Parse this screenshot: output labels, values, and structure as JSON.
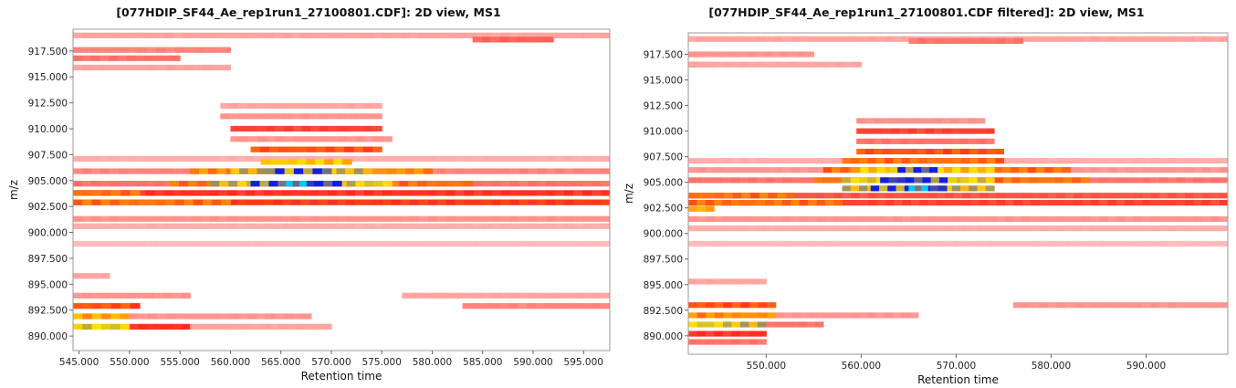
{
  "charts": [
    {
      "title": "[077HDIP_SF44_Ae_rep1run1_27100801.CDF]: 2D view, MS1",
      "xlabel": "Retention time",
      "ylabel": "m/z"
    },
    {
      "title": "[077HDIP_SF44_Ae_rep1run1_27100801.CDF filtered]: 2D view, MS1",
      "xlabel": "Retention time",
      "ylabel": "m/z"
    }
  ],
  "colors": {
    "low": "#ffd6d6",
    "mid": "#ff2a1a",
    "high": "#ffe100",
    "peak": "#1020e0",
    "apex": "#00c8ff"
  },
  "chart_data": [
    {
      "type": "heatmap",
      "title": "[077HDIP_SF44_Ae_rep1run1_27100801.CDF]: 2D view, MS1",
      "xlabel": "Retention time",
      "ylabel": "m/z",
      "xlim": [
        544.4,
        597.6
      ],
      "ylim": [
        888.6,
        919.6
      ],
      "xticks": [
        "545.000",
        "550.000",
        "555.000",
        "560.000",
        "565.000",
        "570.000",
        "575.000",
        "580.000",
        "585.000",
        "590.000",
        "595.000"
      ],
      "yticks": [
        "890.000",
        "892.500",
        "895.000",
        "897.500",
        "900.000",
        "902.500",
        "905.000",
        "907.500",
        "910.000",
        "912.500",
        "915.000",
        "917.500"
      ],
      "bands": [
        {
          "mz": 919.0,
          "x0": 544.4,
          "x1": 597.6,
          "intensity": 0.15
        },
        {
          "mz": 918.6,
          "x0": 584.0,
          "x1": 592.0,
          "intensity": 0.35
        },
        {
          "mz": 917.6,
          "x0": 544.4,
          "x1": 560.0,
          "intensity": 0.25
        },
        {
          "mz": 916.8,
          "x0": 544.4,
          "x1": 555.0,
          "intensity": 0.3
        },
        {
          "mz": 915.9,
          "x0": 544.4,
          "x1": 560.0,
          "intensity": 0.15
        },
        {
          "mz": 912.2,
          "x0": 559.0,
          "x1": 575.0,
          "intensity": 0.15
        },
        {
          "mz": 911.2,
          "x0": 559.0,
          "x1": 575.0,
          "intensity": 0.2
        },
        {
          "mz": 910.0,
          "x0": 560.0,
          "x1": 575.0,
          "intensity": 0.45
        },
        {
          "mz": 909.0,
          "x0": 560.0,
          "x1": 576.0,
          "intensity": 0.2
        },
        {
          "mz": 908.0,
          "x0": 562.0,
          "x1": 575.0,
          "intensity": 0.6
        },
        {
          "mz": 907.1,
          "x0": 544.4,
          "x1": 597.6,
          "intensity": 0.12
        },
        {
          "mz": 906.8,
          "x0": 563.0,
          "x1": 572.0,
          "intensity": 0.8
        },
        {
          "mz": 905.9,
          "x0": 544.4,
          "x1": 597.6,
          "intensity": 0.25
        },
        {
          "mz": 905.9,
          "x0": 556.0,
          "x1": 580.0,
          "intensity": 0.7
        },
        {
          "mz": 905.9,
          "x0": 560.0,
          "x1": 574.0,
          "intensity": 0.85
        },
        {
          "mz": 905.9,
          "x0": 563.5,
          "x1": 570.0,
          "intensity": 0.95
        },
        {
          "mz": 904.7,
          "x0": 544.4,
          "x1": 597.6,
          "intensity": 0.3
        },
        {
          "mz": 904.7,
          "x0": 554.0,
          "x1": 584.0,
          "intensity": 0.65
        },
        {
          "mz": 904.7,
          "x0": 558.0,
          "x1": 576.0,
          "intensity": 0.85
        },
        {
          "mz": 904.7,
          "x0": 562.0,
          "x1": 571.0,
          "intensity": 0.95
        },
        {
          "mz": 904.7,
          "x0": 565.5,
          "x1": 567.5,
          "intensity": 1.0
        },
        {
          "mz": 903.8,
          "x0": 544.4,
          "x1": 597.6,
          "intensity": 0.5
        },
        {
          "mz": 903.8,
          "x0": 544.4,
          "x1": 551.0,
          "intensity": 0.65
        },
        {
          "mz": 902.9,
          "x0": 544.4,
          "x1": 597.6,
          "intensity": 0.55
        },
        {
          "mz": 902.9,
          "x0": 544.4,
          "x1": 560.0,
          "intensity": 0.65
        },
        {
          "mz": 901.3,
          "x0": 544.4,
          "x1": 597.6,
          "intensity": 0.2
        },
        {
          "mz": 900.6,
          "x0": 544.4,
          "x1": 597.6,
          "intensity": 0.12
        },
        {
          "mz": 898.9,
          "x0": 544.4,
          "x1": 597.6,
          "intensity": 0.08
        },
        {
          "mz": 895.8,
          "x0": 544.4,
          "x1": 548.0,
          "intensity": 0.15
        },
        {
          "mz": 893.9,
          "x0": 544.4,
          "x1": 556.0,
          "intensity": 0.2
        },
        {
          "mz": 893.9,
          "x0": 577.0,
          "x1": 597.6,
          "intensity": 0.15
        },
        {
          "mz": 892.9,
          "x0": 544.4,
          "x1": 551.0,
          "intensity": 0.6
        },
        {
          "mz": 892.9,
          "x0": 583.0,
          "x1": 597.6,
          "intensity": 0.25
        },
        {
          "mz": 891.9,
          "x0": 544.4,
          "x1": 550.0,
          "intensity": 0.75
        },
        {
          "mz": 891.9,
          "x0": 550.0,
          "x1": 568.0,
          "intensity": 0.2
        },
        {
          "mz": 890.9,
          "x0": 544.4,
          "x1": 550.0,
          "intensity": 0.85
        },
        {
          "mz": 890.9,
          "x0": 550.0,
          "x1": 556.0,
          "intensity": 0.5
        },
        {
          "mz": 890.9,
          "x0": 556.0,
          "x1": 570.0,
          "intensity": 0.15
        }
      ]
    },
    {
      "type": "heatmap",
      "title": "[077HDIP_SF44_Ae_rep1run1_27100801.CDF filtered]: 2D view, MS1",
      "xlabel": "Retention time",
      "ylabel": "m/z",
      "xlim": [
        541.8,
        598.6
      ],
      "ylim": [
        888.2,
        919.6
      ],
      "xticks": [
        "550.000",
        "560.000",
        "570.000",
        "580.000",
        "590.000"
      ],
      "yticks": [
        "890.000",
        "892.500",
        "895.000",
        "897.500",
        "900.000",
        "902.500",
        "905.000",
        "907.500",
        "910.000",
        "912.500",
        "915.000",
        "917.500"
      ],
      "bands": [
        {
          "mz": 919.0,
          "x0": 541.8,
          "x1": 598.6,
          "intensity": 0.15
        },
        {
          "mz": 918.8,
          "x0": 565.0,
          "x1": 577.0,
          "intensity": 0.3
        },
        {
          "mz": 917.5,
          "x0": 541.8,
          "x1": 543.5,
          "intensity": 0.7
        },
        {
          "mz": 917.5,
          "x0": 541.8,
          "x1": 555.0,
          "intensity": 0.2
        },
        {
          "mz": 916.5,
          "x0": 541.8,
          "x1": 543.5,
          "intensity": 0.6
        },
        {
          "mz": 916.5,
          "x0": 541.8,
          "x1": 560.0,
          "intensity": 0.15
        },
        {
          "mz": 911.0,
          "x0": 559.5,
          "x1": 573.0,
          "intensity": 0.2
        },
        {
          "mz": 910.0,
          "x0": 559.5,
          "x1": 574.0,
          "intensity": 0.45
        },
        {
          "mz": 909.0,
          "x0": 559.5,
          "x1": 574.0,
          "intensity": 0.3
        },
        {
          "mz": 908.0,
          "x0": 559.5,
          "x1": 575.0,
          "intensity": 0.6
        },
        {
          "mz": 907.1,
          "x0": 541.8,
          "x1": 598.6,
          "intensity": 0.12
        },
        {
          "mz": 907.1,
          "x0": 558.0,
          "x1": 575.0,
          "intensity": 0.65
        },
        {
          "mz": 906.2,
          "x0": 541.8,
          "x1": 598.6,
          "intensity": 0.2
        },
        {
          "mz": 906.2,
          "x0": 556.0,
          "x1": 582.0,
          "intensity": 0.65
        },
        {
          "mz": 906.2,
          "x0": 559.0,
          "x1": 574.0,
          "intensity": 0.8
        },
        {
          "mz": 906.2,
          "x0": 563.0,
          "x1": 568.0,
          "intensity": 0.95
        },
        {
          "mz": 905.2,
          "x0": 541.8,
          "x1": 598.6,
          "intensity": 0.3
        },
        {
          "mz": 905.2,
          "x0": 555.0,
          "x1": 584.0,
          "intensity": 0.65
        },
        {
          "mz": 905.2,
          "x0": 558.0,
          "x1": 574.0,
          "intensity": 0.85
        },
        {
          "mz": 905.2,
          "x0": 562.0,
          "x1": 570.0,
          "intensity": 0.95
        },
        {
          "mz": 904.4,
          "x0": 558.0,
          "x1": 574.0,
          "intensity": 0.85
        },
        {
          "mz": 904.4,
          "x0": 561.0,
          "x1": 569.0,
          "intensity": 0.95
        },
        {
          "mz": 904.4,
          "x0": 565.0,
          "x1": 567.0,
          "intensity": 1.0
        },
        {
          "mz": 903.7,
          "x0": 541.8,
          "x1": 598.6,
          "intensity": 0.4
        },
        {
          "mz": 903.7,
          "x0": 541.8,
          "x1": 553.0,
          "intensity": 0.65
        },
        {
          "mz": 903.0,
          "x0": 541.8,
          "x1": 598.6,
          "intensity": 0.45
        },
        {
          "mz": 903.0,
          "x0": 541.8,
          "x1": 558.0,
          "intensity": 0.65
        },
        {
          "mz": 902.4,
          "x0": 541.8,
          "x1": 544.5,
          "intensity": 0.75
        },
        {
          "mz": 901.4,
          "x0": 541.8,
          "x1": 598.6,
          "intensity": 0.2
        },
        {
          "mz": 900.5,
          "x0": 541.8,
          "x1": 598.6,
          "intensity": 0.12
        },
        {
          "mz": 899.0,
          "x0": 541.8,
          "x1": 598.6,
          "intensity": 0.08
        },
        {
          "mz": 895.3,
          "x0": 541.8,
          "x1": 550.0,
          "intensity": 0.15
        },
        {
          "mz": 893.0,
          "x0": 541.8,
          "x1": 551.0,
          "intensity": 0.6
        },
        {
          "mz": 893.0,
          "x0": 576.0,
          "x1": 598.6,
          "intensity": 0.2
        },
        {
          "mz": 892.0,
          "x0": 541.8,
          "x1": 551.0,
          "intensity": 0.7
        },
        {
          "mz": 892.0,
          "x0": 551.0,
          "x1": 566.0,
          "intensity": 0.2
        },
        {
          "mz": 891.1,
          "x0": 541.8,
          "x1": 550.0,
          "intensity": 0.85
        },
        {
          "mz": 891.1,
          "x0": 550.0,
          "x1": 556.0,
          "intensity": 0.3
        },
        {
          "mz": 890.2,
          "x0": 541.8,
          "x1": 550.0,
          "intensity": 0.5
        },
        {
          "mz": 889.4,
          "x0": 541.8,
          "x1": 550.0,
          "intensity": 0.3
        }
      ]
    }
  ]
}
